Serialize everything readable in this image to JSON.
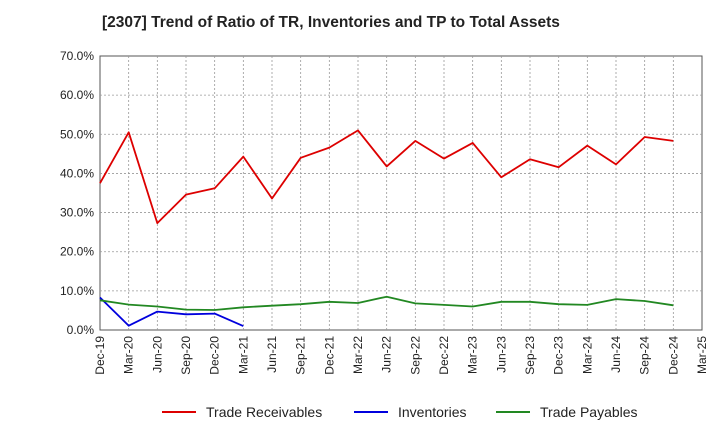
{
  "chart_data": {
    "type": "line",
    "title": "[2307]  Trend of Ratio of TR, Inventories and TP to Total Assets",
    "xlabel": "",
    "ylabel": "",
    "x_ticks": [
      "Dec-19",
      "Mar-20",
      "Jun-20",
      "Sep-20",
      "Dec-20",
      "Mar-21",
      "Jun-21",
      "Sep-21",
      "Dec-21",
      "Mar-22",
      "Jun-22",
      "Sep-22",
      "Dec-22",
      "Mar-23",
      "Jun-23",
      "Sep-23",
      "Dec-23",
      "Mar-24",
      "Jun-24",
      "Sep-24",
      "Dec-24",
      "Mar-25"
    ],
    "y_ticks": [
      "0.0%",
      "10.0%",
      "20.0%",
      "30.0%",
      "40.0%",
      "50.0%",
      "60.0%",
      "70.0%"
    ],
    "ylim": [
      0,
      70
    ],
    "grid": true,
    "legend_position": "bottom",
    "series": [
      {
        "name": "Trade Receivables",
        "color": "#dd0000",
        "values": [
          37.5,
          50.5,
          27.3,
          34.6,
          36.2,
          44.3,
          33.6,
          44.0,
          46.6,
          51.0,
          41.8,
          48.3,
          43.8,
          47.8,
          39.0,
          43.6,
          41.6,
          47.1,
          42.3,
          49.3,
          48.3
        ]
      },
      {
        "name": "Inventories",
        "color": "#0000dd",
        "values": [
          8.3,
          1.1,
          4.7,
          4.0,
          4.2,
          1.0
        ]
      },
      {
        "name": "Trade Payables",
        "color": "#228822",
        "values": [
          7.6,
          6.5,
          6.0,
          5.2,
          5.1,
          5.8,
          6.2,
          6.6,
          7.2,
          6.9,
          8.5,
          6.8,
          6.4,
          6.0,
          7.2,
          7.2,
          6.6,
          6.4,
          7.9,
          7.4,
          6.3
        ]
      }
    ]
  }
}
